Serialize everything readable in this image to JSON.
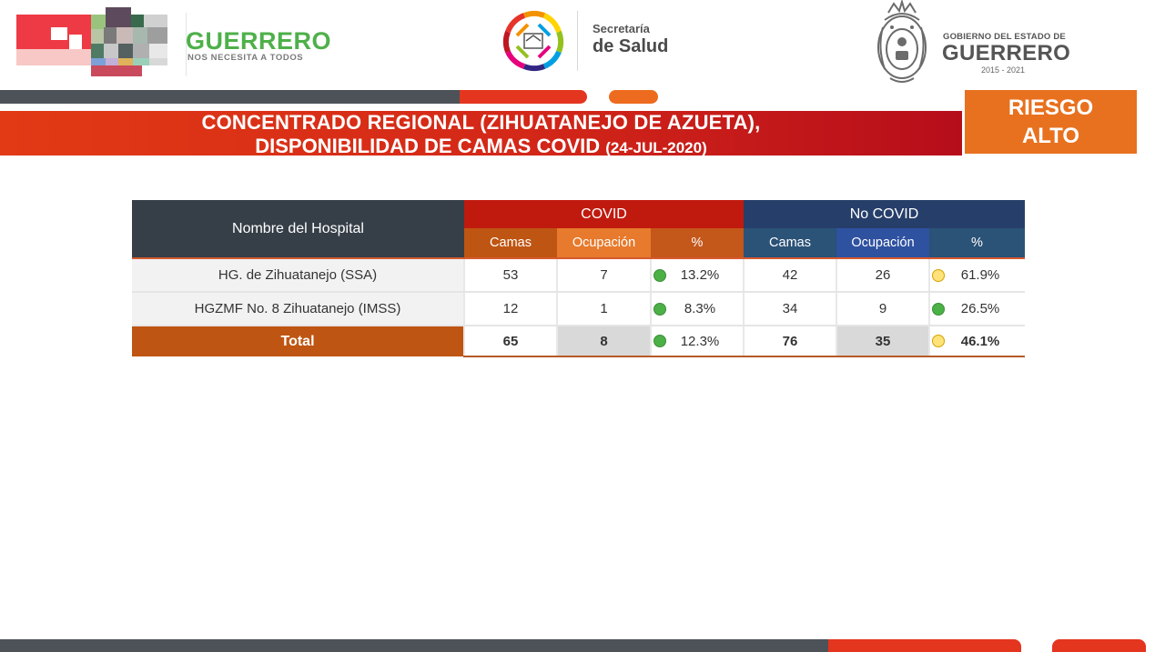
{
  "header": {
    "guerrero_logo": {
      "word": "GUERRERO",
      "tagline": "NOS NECESITA A TODOS"
    },
    "salud_logo": {
      "small": "Secretaría",
      "big": "de Salud"
    },
    "gobierno_logo": {
      "small": "GOBIERNO DEL ESTADO DE",
      "big": "GUERRERO",
      "years": "2015 - 2021"
    }
  },
  "banner": {
    "line1": "CONCENTRADO REGIONAL (ZIHUATANEJO DE AZUETA),",
    "line2": "DISPONIBILIDAD DE CAMAS COVID",
    "date": "(24-JUL-2020)"
  },
  "risk": {
    "line1": "RIESGO",
    "line2": "ALTO"
  },
  "table": {
    "name_header": "Nombre del Hospital",
    "covid_header": "COVID",
    "nocovid_header": "No COVID",
    "sub_headers": {
      "beds": "Camas",
      "occupancy": "Ocupación",
      "pct": "%"
    },
    "rows": [
      {
        "name": "HG. de Zihuatanejo (SSA)",
        "covid_beds": "53",
        "covid_occ": "7",
        "covid_pct": "13.2%",
        "nocovid_beds": "42",
        "nocovid_occ": "26",
        "nocovid_pct": "61.9%"
      },
      {
        "name": "HGZMF No. 8 Zihuatanejo (IMSS)",
        "covid_beds": "12",
        "covid_occ": "1",
        "covid_pct": "8.3%",
        "nocovid_beds": "34",
        "nocovid_occ": "9",
        "nocovid_pct": "26.5%"
      }
    ],
    "total": {
      "name": "Total",
      "covid_beds": "65",
      "covid_occ": "8",
      "covid_pct": "12.3%",
      "nocovid_beds": "76",
      "nocovid_occ": "35",
      "nocovid_pct": "46.1%"
    },
    "status_colors": {
      "green": "#4bb146",
      "yellow": "#ffe27a"
    }
  },
  "colors": {
    "banner_red": "#d32718",
    "risk_orange": "#e8711f",
    "covid_header": "#c01a0f",
    "nocovid_header": "#263f6a",
    "name_header": "#363f48",
    "guerrero_green": "#4eb04a"
  }
}
